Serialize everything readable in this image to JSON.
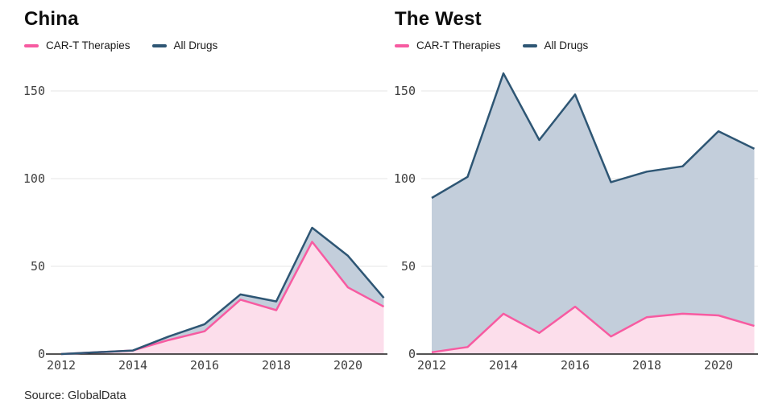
{
  "page": {
    "source": "Source: GlobalData"
  },
  "chart_data": [
    {
      "type": "area",
      "title": "China",
      "x": [
        2012,
        2013,
        2014,
        2015,
        2016,
        2017,
        2018,
        2019,
        2020,
        2021
      ],
      "xticks": [
        2012,
        2014,
        2016,
        2018,
        2020
      ],
      "yticks": [
        0,
        50,
        100,
        150
      ],
      "ylim": [
        0,
        160
      ],
      "grid": true,
      "legend_position": "top-left",
      "series": [
        {
          "name": "All Drugs",
          "values": [
            0,
            1,
            2,
            10,
            17,
            34,
            30,
            72,
            56,
            32
          ],
          "line_color": "#2e5674",
          "fill_color": "#c3cedb"
        },
        {
          "name": "CAR-T Therapies",
          "values": [
            0,
            1,
            2,
            8,
            13,
            31,
            25,
            64,
            38,
            27
          ],
          "line_color": "#f75ba1",
          "fill_color": "#fcdeeb"
        }
      ]
    },
    {
      "type": "area",
      "title": "The West",
      "x": [
        2012,
        2013,
        2014,
        2015,
        2016,
        2017,
        2018,
        2019,
        2020,
        2021
      ],
      "xticks": [
        2012,
        2014,
        2016,
        2018,
        2020
      ],
      "yticks": [
        0,
        50,
        100,
        150
      ],
      "ylim": [
        0,
        160
      ],
      "grid": true,
      "legend_position": "top-left",
      "series": [
        {
          "name": "All Drugs",
          "values": [
            89,
            101,
            160,
            122,
            148,
            98,
            104,
            107,
            127,
            117
          ],
          "line_color": "#2e5674",
          "fill_color": "#c3cedb"
        },
        {
          "name": "CAR-T Therapies",
          "values": [
            1,
            4,
            23,
            12,
            27,
            10,
            21,
            23,
            22,
            16
          ],
          "line_color": "#f75ba1",
          "fill_color": "#fcdeeb"
        }
      ]
    }
  ]
}
